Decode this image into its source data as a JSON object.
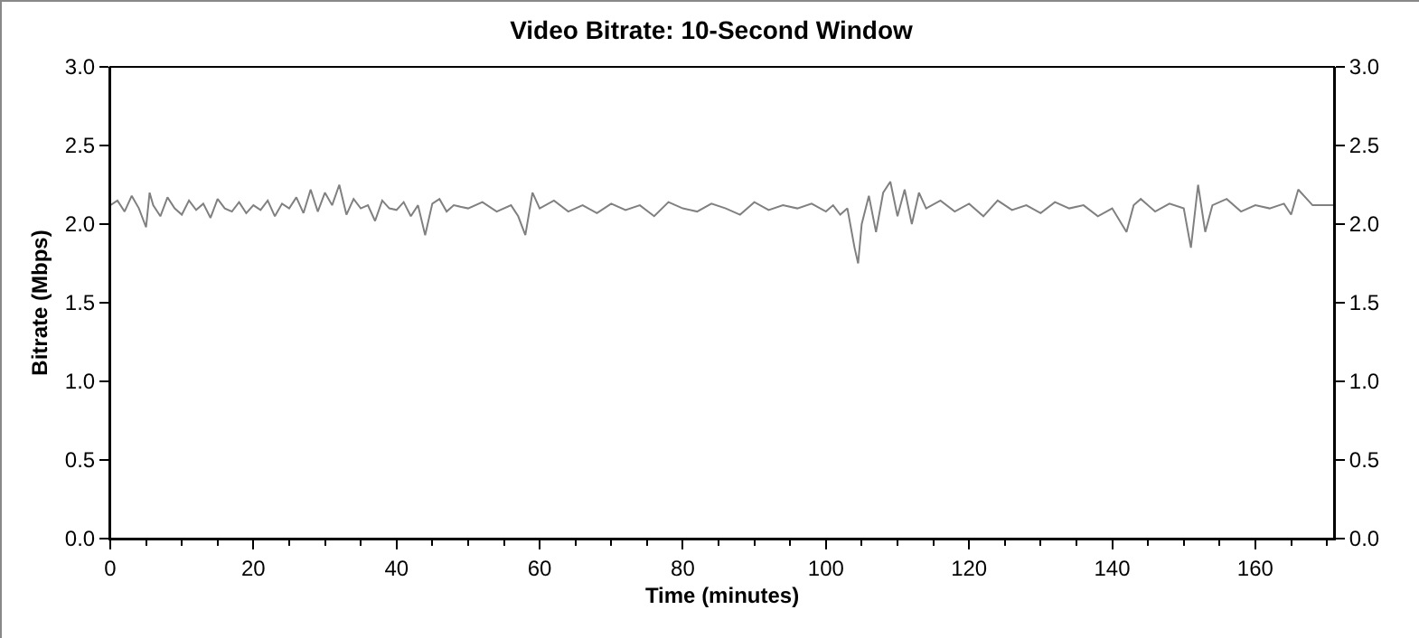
{
  "chart_data": {
    "type": "line",
    "title": "Video Bitrate: 10-Second Window",
    "xlabel": "Time (minutes)",
    "ylabel": "Bitrate (Mbps)",
    "xlim": [
      0,
      171
    ],
    "ylim": [
      0,
      3
    ],
    "y2lim": [
      0,
      3
    ],
    "xticks": [
      0,
      {
        "value": 5,
        "label": null
      },
      {
        "value": 10,
        "label": null
      },
      {
        "value": 15,
        "label": null
      },
      20,
      {
        "value": 25,
        "label": null
      },
      {
        "value": 30,
        "label": null
      },
      {
        "value": 35,
        "label": null
      },
      40,
      {
        "value": 45,
        "label": null
      },
      {
        "value": 50,
        "label": null
      },
      {
        "value": 55,
        "label": null
      },
      60,
      {
        "value": 65,
        "label": null
      },
      {
        "value": 70,
        "label": null
      },
      {
        "value": 75,
        "label": null
      },
      80,
      {
        "value": 85,
        "label": null
      },
      {
        "value": 90,
        "label": null
      },
      {
        "value": 95,
        "label": null
      },
      100,
      {
        "value": 105,
        "label": null
      },
      {
        "value": 110,
        "label": null
      },
      {
        "value": 115,
        "label": null
      },
      120,
      {
        "value": 125,
        "label": null
      },
      {
        "value": 130,
        "label": null
      },
      {
        "value": 135,
        "label": null
      },
      140,
      {
        "value": 145,
        "label": null
      },
      {
        "value": 150,
        "label": null
      },
      {
        "value": 155,
        "label": null
      },
      160,
      {
        "value": 165,
        "label": null
      },
      {
        "value": 170,
        "label": null
      }
    ],
    "yticks": [
      {
        "value": 0,
        "label": "0.0"
      },
      {
        "value": 0.5,
        "label": "0.5"
      },
      {
        "value": 1,
        "label": "1.0"
      },
      {
        "value": 1.5,
        "label": "1.5"
      },
      {
        "value": 2,
        "label": "2.0"
      },
      {
        "value": 2.5,
        "label": "2.5"
      },
      {
        "value": 3,
        "label": "3.0"
      }
    ],
    "y2ticks": [
      {
        "value": 0,
        "label": "0.0"
      },
      {
        "value": 0.5,
        "label": "0.5"
      },
      {
        "value": 1,
        "label": "1.0"
      },
      {
        "value": 1.5,
        "label": "1.5"
      },
      {
        "value": 2,
        "label": "2.0"
      },
      {
        "value": 2.5,
        "label": "2.5"
      },
      {
        "value": 3,
        "label": "3.0"
      }
    ],
    "grid": false,
    "marker": "none",
    "line_style": "solid",
    "series": [
      {
        "color": "#808080",
        "x": [
          0,
          1,
          2,
          3,
          4,
          5,
          5.5,
          6,
          7,
          8,
          9,
          10,
          11,
          12,
          13,
          14,
          15,
          16,
          17,
          18,
          19,
          20,
          21,
          22,
          23,
          24,
          25,
          26,
          27,
          28,
          29,
          30,
          31,
          32,
          33,
          34,
          35,
          36,
          37,
          38,
          39,
          40,
          41,
          42,
          43,
          44,
          45,
          46,
          47,
          48,
          50,
          52,
          54,
          56,
          57,
          58,
          59,
          60,
          62,
          64,
          66,
          68,
          70,
          72,
          74,
          76,
          78,
          80,
          82,
          84,
          86,
          88,
          90,
          92,
          94,
          96,
          98,
          100,
          101,
          102,
          103,
          104,
          104.5,
          105,
          106,
          107,
          108,
          109,
          110,
          111,
          112,
          113,
          114,
          116,
          118,
          120,
          122,
          124,
          126,
          128,
          130,
          132,
          134,
          136,
          138,
          140,
          142,
          143,
          144,
          146,
          148,
          150,
          151,
          152,
          153,
          154,
          156,
          158,
          160,
          162,
          164,
          165,
          166,
          168,
          171
        ],
        "values": [
          2.12,
          2.15,
          2.08,
          2.18,
          2.1,
          1.98,
          2.2,
          2.12,
          2.05,
          2.17,
          2.1,
          2.06,
          2.15,
          2.09,
          2.13,
          2.04,
          2.16,
          2.1,
          2.08,
          2.14,
          2.07,
          2.12,
          2.09,
          2.15,
          2.05,
          2.13,
          2.1,
          2.17,
          2.07,
          2.22,
          2.08,
          2.2,
          2.12,
          2.25,
          2.06,
          2.16,
          2.1,
          2.12,
          2.02,
          2.15,
          2.1,
          2.09,
          2.14,
          2.05,
          2.12,
          1.93,
          2.13,
          2.16,
          2.08,
          2.12,
          2.1,
          2.14,
          2.08,
          2.12,
          2.05,
          1.93,
          2.2,
          2.1,
          2.15,
          2.08,
          2.12,
          2.07,
          2.13,
          2.09,
          2.12,
          2.05,
          2.14,
          2.1,
          2.08,
          2.13,
          2.1,
          2.06,
          2.14,
          2.09,
          2.12,
          2.1,
          2.13,
          2.08,
          2.12,
          2.06,
          2.1,
          1.85,
          1.75,
          2.0,
          2.18,
          1.95,
          2.2,
          2.27,
          2.05,
          2.22,
          2.0,
          2.2,
          2.1,
          2.15,
          2.08,
          2.13,
          2.05,
          2.15,
          2.09,
          2.12,
          2.07,
          2.14,
          2.1,
          2.12,
          2.05,
          2.1,
          1.95,
          2.12,
          2.16,
          2.08,
          2.13,
          2.1,
          1.85,
          2.25,
          1.95,
          2.12,
          2.16,
          2.08,
          2.12,
          2.1,
          2.13,
          2.06,
          2.22,
          2.12,
          2.12
        ]
      }
    ]
  }
}
